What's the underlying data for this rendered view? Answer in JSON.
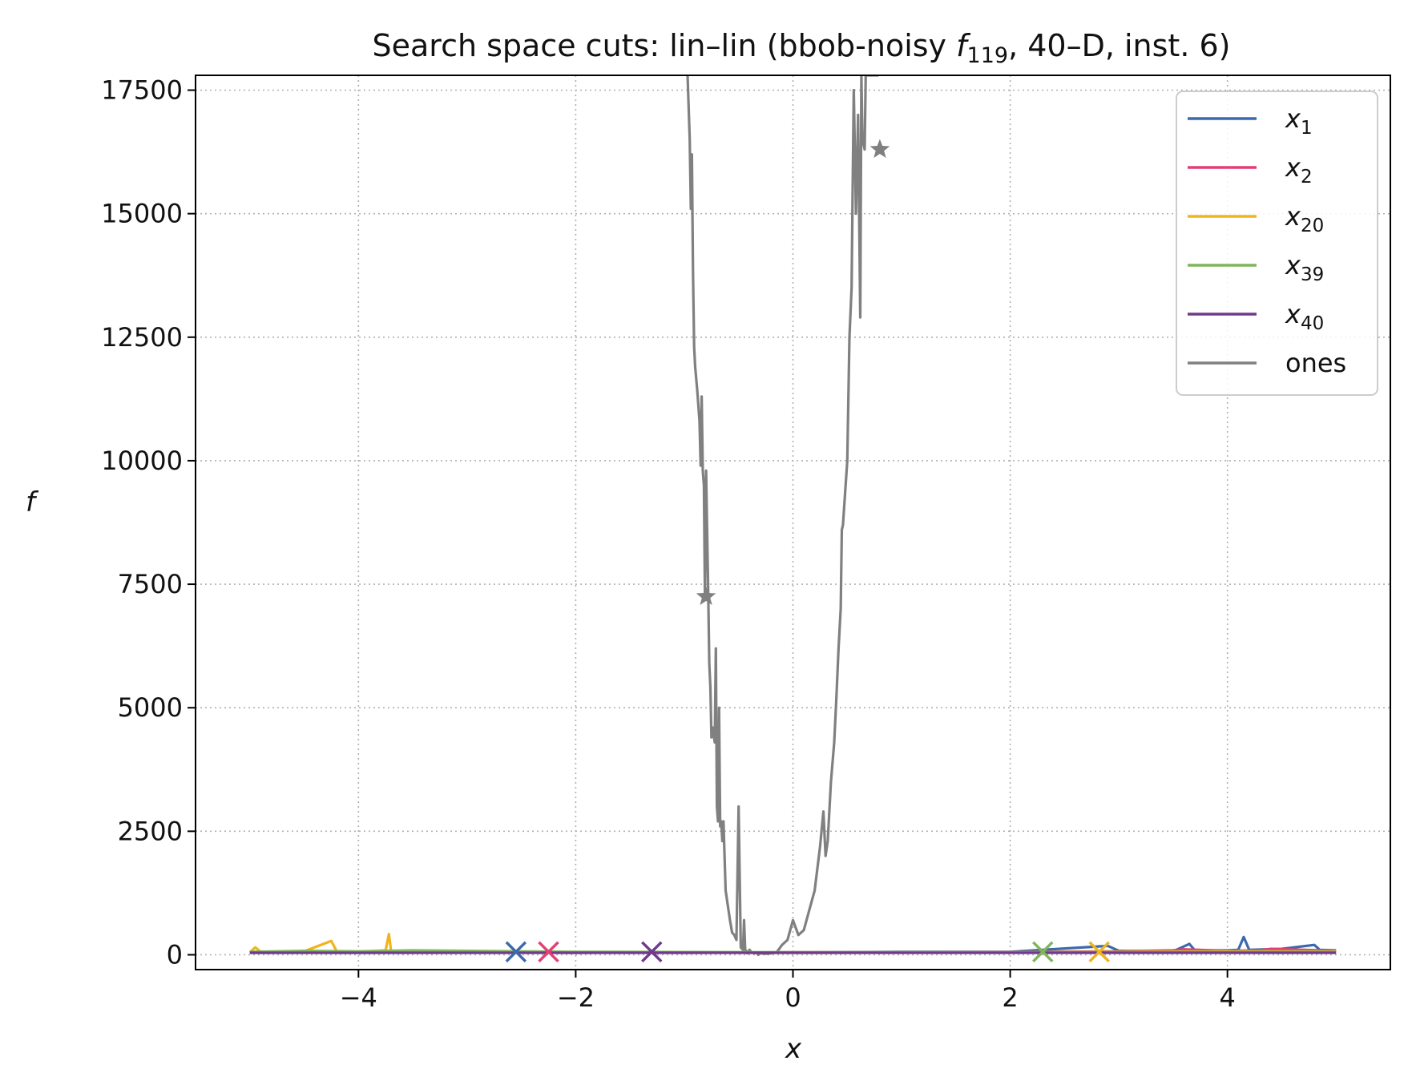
{
  "chart_data": {
    "type": "line",
    "title": "Search space cuts: lin–lin (bbob-noisy f119, 40–D, inst. 6)",
    "title_parts": {
      "before": "Search space cuts: lin–lin (bbob-noisy ",
      "func": "f",
      "func_sub": "119",
      "after": ", 40–D, inst. 6)"
    },
    "xlabel": "x",
    "ylabel": "f",
    "xlim": [
      -5.5,
      5.5
    ],
    "ylim": [
      -300,
      17800
    ],
    "xticks": [
      -4,
      -2,
      0,
      2,
      4
    ],
    "xtick_labels": [
      "−4",
      "−2",
      "0",
      "2",
      "4"
    ],
    "yticks": [
      0,
      2500,
      5000,
      7500,
      10000,
      12500,
      15000,
      17500
    ],
    "ytick_labels": [
      "0",
      "2500",
      "5000",
      "7500",
      "10000",
      "12500",
      "15000",
      "17500"
    ],
    "grid": true,
    "legend_position": "top-right",
    "series": [
      {
        "name": "x1",
        "label_base": "x",
        "label_sub": "1",
        "color": "#3b6aac",
        "x": [
          -5.0,
          -4.0,
          -3.0,
          -2.0,
          -1.0,
          0.0,
          1.0,
          2.0,
          2.9,
          3.0,
          3.5,
          3.65,
          3.7,
          4.0,
          4.1,
          4.15,
          4.2,
          4.5,
          4.8,
          4.85,
          5.0
        ],
        "y": [
          40,
          45,
          50,
          40,
          50,
          45,
          60,
          60,
          180,
          80,
          70,
          220,
          90,
          90,
          100,
          360,
          100,
          120,
          200,
          100,
          90
        ],
        "marker": {
          "x": -2.55,
          "y": 60,
          "symbol": "x"
        }
      },
      {
        "name": "x2",
        "label_base": "x",
        "label_sub": "2",
        "color": "#e23f73",
        "x": [
          -5.0,
          -4.0,
          -3.0,
          -2.0,
          -1.0,
          0.0,
          1.0,
          2.0,
          3.0,
          3.5,
          3.6,
          4.0,
          4.3,
          4.4,
          5.0
        ],
        "y": [
          45,
          40,
          50,
          45,
          40,
          50,
          50,
          55,
          70,
          90,
          110,
          80,
          90,
          120,
          80
        ],
        "marker": {
          "x": -2.25,
          "y": 60,
          "symbol": "x"
        }
      },
      {
        "name": "x20",
        "label_base": "x",
        "label_sub": "20",
        "color": "#f0b41c",
        "x": [
          -5.0,
          -4.95,
          -4.9,
          -4.5,
          -4.25,
          -4.2,
          -4.0,
          -3.75,
          -3.72,
          -3.7,
          -3.5,
          -3.0,
          -2.0,
          0.0,
          2.0,
          3.0,
          4.0,
          5.0
        ],
        "y": [
          50,
          150,
          60,
          70,
          280,
          70,
          60,
          90,
          420,
          80,
          70,
          60,
          50,
          40,
          45,
          60,
          70,
          70
        ],
        "marker": {
          "x": 2.82,
          "y": 60,
          "symbol": "x"
        }
      },
      {
        "name": "x39",
        "label_base": "x",
        "label_sub": "39",
        "color": "#7fb65b",
        "x": [
          -5.0,
          -4.5,
          -4.0,
          -3.5,
          -3.0,
          -2.0,
          0.0,
          2.0,
          4.0,
          5.0
        ],
        "y": [
          60,
          80,
          70,
          90,
          80,
          60,
          50,
          50,
          55,
          60
        ],
        "marker": {
          "x": 2.3,
          "y": 60,
          "symbol": "x"
        }
      },
      {
        "name": "x40",
        "label_base": "x",
        "label_sub": "40",
        "color": "#6f3a8c",
        "x": [
          -5.0,
          -2.5,
          0.0,
          2.5,
          5.0
        ],
        "y": [
          40,
          40,
          40,
          40,
          40
        ],
        "marker": {
          "x": -1.3,
          "y": 60,
          "symbol": "x"
        }
      },
      {
        "name": "ones",
        "label_base": "ones",
        "label_sub": "",
        "color": "#808080",
        "x": [
          -0.97,
          -0.95,
          -0.94,
          -0.93,
          -0.92,
          -0.91,
          -0.9,
          -0.88,
          -0.86,
          -0.85,
          -0.84,
          -0.83,
          -0.82,
          -0.81,
          -0.8,
          -0.78,
          -0.77,
          -0.76,
          -0.75,
          -0.74,
          -0.72,
          -0.71,
          -0.7,
          -0.69,
          -0.68,
          -0.67,
          -0.66,
          -0.65,
          -0.64,
          -0.62,
          -0.6,
          -0.58,
          -0.56,
          -0.54,
          -0.52,
          -0.5,
          -0.48,
          -0.46,
          -0.45,
          -0.44,
          -0.43,
          -0.42,
          -0.4,
          -0.38,
          -0.36,
          -0.34,
          -0.32,
          -0.3,
          -0.25,
          -0.2,
          -0.15,
          -0.1,
          -0.05,
          0.0,
          0.05,
          0.1,
          0.15,
          0.2,
          0.25,
          0.28,
          0.3,
          0.32,
          0.35,
          0.38,
          0.4,
          0.42,
          0.44,
          0.45,
          0.46,
          0.5,
          0.52,
          0.54,
          0.55,
          0.56,
          0.58,
          0.6,
          0.62,
          0.63,
          0.64,
          0.65,
          0.66,
          0.67,
          0.68,
          0.69,
          0.7,
          0.71,
          0.72,
          0.73,
          0.75,
          0.76,
          0.77,
          0.78,
          0.79
        ],
        "y": [
          17800,
          16500,
          15100,
          16200,
          13800,
          12300,
          11900,
          11400,
          10800,
          9900,
          11300,
          9800,
          9500,
          7200,
          9800,
          7300,
          5900,
          5400,
          4400,
          4600,
          4300,
          6200,
          3000,
          2700,
          5000,
          2600,
          2700,
          2300,
          2700,
          1300,
          1000,
          700,
          450,
          400,
          300,
          3000,
          150,
          100,
          700,
          100,
          80,
          30,
          100,
          50,
          30,
          50,
          0,
          30,
          20,
          30,
          50,
          200,
          300,
          700,
          400,
          500,
          900,
          1300,
          2200,
          2900,
          2000,
          2300,
          3500,
          4300,
          5200,
          6200,
          7000,
          8600,
          8700,
          10000,
          12500,
          13500,
          15500,
          17500,
          15000,
          17000,
          12900,
          17800,
          16500,
          16400,
          16300,
          17800,
          17800,
          17800,
          17800,
          17800,
          17800,
          17800,
          17800,
          17800,
          17800,
          17800,
          17800
        ],
        "marker": {
          "x": -0.8,
          "y": 7250,
          "symbol": "star",
          "x2": 0.8,
          "y2": 16300
        }
      }
    ]
  }
}
